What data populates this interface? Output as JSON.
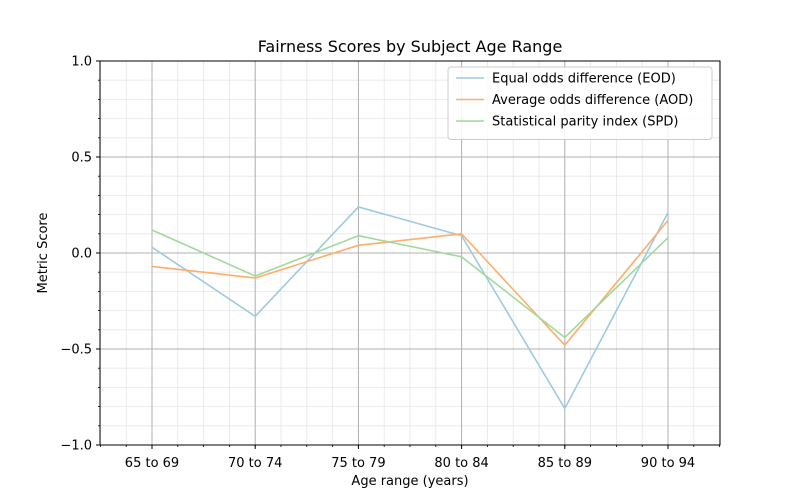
{
  "chart_data": {
    "type": "line",
    "title": "Fairness Scores by Subject Age Range",
    "xlabel": "Age range (years)",
    "ylabel": "Metric Score",
    "ylim": [
      -1.0,
      1.0
    ],
    "yticks": [
      1.0,
      0.5,
      0.0,
      -0.5,
      -1.0
    ],
    "ytick_labels": [
      "1.0",
      "0.5",
      "0.0",
      "−0.5",
      "−1.0"
    ],
    "categories": [
      "65 to 69",
      "70 to 74",
      "75 to 79",
      "80 to 84",
      "85 to 89",
      "90 to 94"
    ],
    "grid": true,
    "legend_position": "top-right",
    "series": [
      {
        "name": "Equal odds difference (EOD)",
        "color": "#9ecae1",
        "values": [
          0.03,
          -0.33,
          0.24,
          0.09,
          -0.81,
          0.21
        ]
      },
      {
        "name": "Average odds difference (AOD)",
        "color": "#fdae6b",
        "values": [
          -0.07,
          -0.13,
          0.04,
          0.1,
          -0.48,
          0.17
        ]
      },
      {
        "name": "Statistical parity index (SPD)",
        "color": "#a1d99b",
        "values": [
          0.12,
          -0.12,
          0.09,
          -0.02,
          -0.44,
          0.08
        ]
      }
    ]
  }
}
